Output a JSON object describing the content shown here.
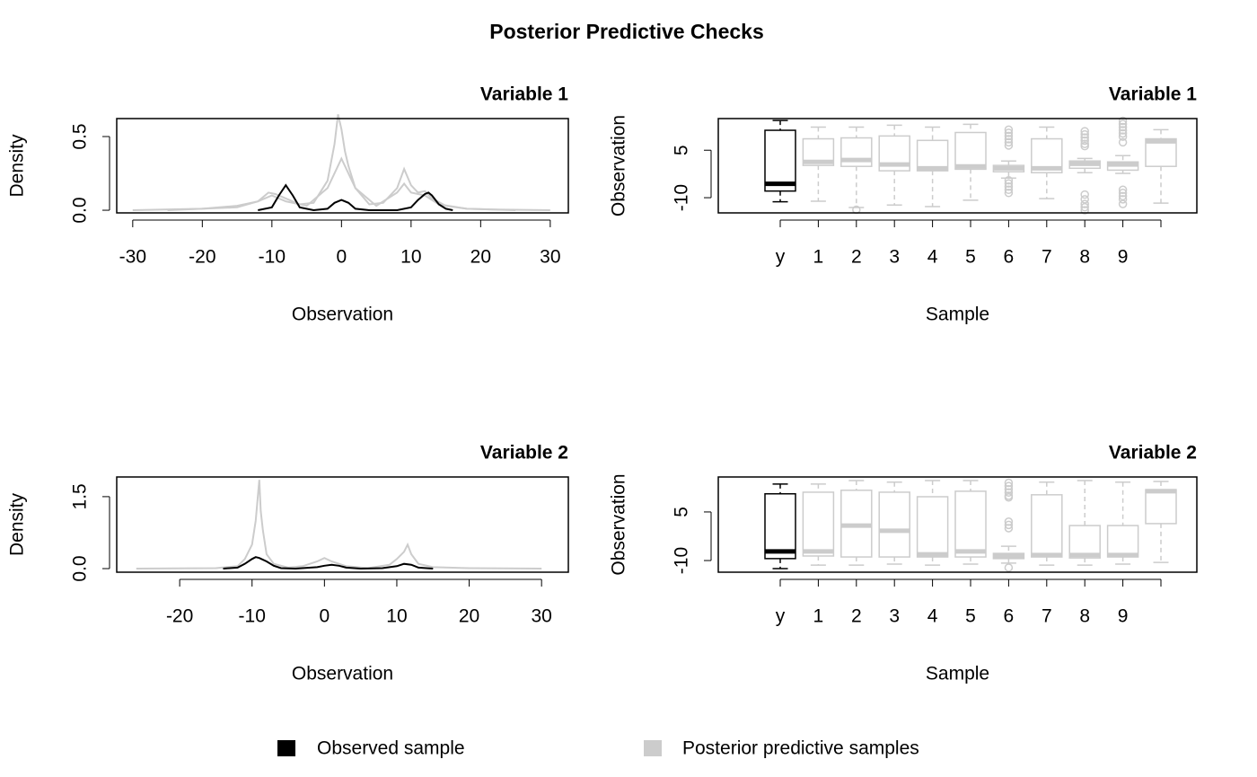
{
  "title": "Posterior Predictive Checks",
  "legend": [
    {
      "name": "Observed sample",
      "color": "#000000"
    },
    {
      "name": "Posterior predictive samples",
      "color": "#cccccc"
    }
  ],
  "chart_data": [
    {
      "type": "line",
      "title": "Variable 1",
      "xlabel": "Observation",
      "ylabel": "Density",
      "xlim": [
        -32.3,
        32.6
      ],
      "ylim": [
        -0.018,
        0.622
      ],
      "xticks": [
        -30,
        -20,
        -10,
        0,
        10,
        20,
        30
      ],
      "yticks": [
        {
          "value": 0,
          "label": "0.0"
        },
        {
          "value": 0.5,
          "label": "0.5"
        }
      ],
      "series": [
        {
          "color": "#cccccc",
          "x": [
            -30,
            -20,
            -15,
            -12,
            -10.5,
            -9.5,
            -8,
            -6,
            -4,
            -2,
            -1,
            -0.5,
            0,
            0.5,
            1,
            2,
            4,
            6,
            8,
            9,
            10,
            11,
            12,
            13,
            15,
            18,
            22,
            30
          ],
          "values": [
            0,
            0.01,
            0.03,
            0.06,
            0.12,
            0.11,
            0.08,
            0.04,
            0.05,
            0.2,
            0.45,
            0.65,
            0.55,
            0.4,
            0.3,
            0.15,
            0.04,
            0.05,
            0.15,
            0.28,
            0.17,
            0.12,
            0.13,
            0.08,
            0.03,
            0.01,
            0.005,
            0
          ]
        },
        {
          "color": "#cccccc",
          "x": [
            -25,
            -15,
            -12,
            -10,
            -8,
            -5,
            -2,
            0,
            2,
            5,
            8,
            9,
            10,
            12,
            14,
            18,
            25
          ],
          "values": [
            0,
            0.02,
            0.06,
            0.1,
            0.06,
            0.03,
            0.15,
            0.35,
            0.15,
            0.03,
            0.12,
            0.18,
            0.12,
            0.1,
            0.04,
            0.01,
            0
          ]
        },
        {
          "color": "#000000",
          "x": [
            -12,
            -10,
            -9,
            -8,
            -7,
            -6,
            -4,
            -2,
            -1,
            0,
            1,
            2,
            4,
            6,
            8,
            10,
            11,
            12,
            12.5,
            13,
            14,
            15,
            16
          ],
          "values": [
            0,
            0.02,
            0.1,
            0.17,
            0.1,
            0.02,
            0,
            0.01,
            0.05,
            0.07,
            0.05,
            0.01,
            0,
            0,
            0,
            0.02,
            0.07,
            0.11,
            0.12,
            0.1,
            0.04,
            0.01,
            0
          ]
        }
      ]
    },
    {
      "type": "box",
      "title": "Variable 1",
      "xlabel": "Sample",
      "ylabel": "Observation",
      "ylim": [
        -14.8,
        15
      ],
      "yticks": [
        -10,
        5
      ],
      "categories": [
        "y",
        "1",
        "2",
        "3",
        "4",
        "5",
        "6",
        "7",
        "8",
        "9",
        null
      ],
      "boxes": [
        {
          "color": "#000000",
          "min": -11.3,
          "q1": -7.9,
          "median": -5.6,
          "q3": 11.3,
          "max": 14.4,
          "outliers": []
        },
        {
          "color": "#cccccc",
          "min": -11.1,
          "q1": 0.2,
          "median": 1.3,
          "q3": 8.6,
          "max": 12.3,
          "outliers": []
        },
        {
          "color": "#cccccc",
          "min": -13.1,
          "q1": -0.1,
          "median": 1.9,
          "q3": 8.9,
          "max": 12.3,
          "outliers": [
            -13.8
          ]
        },
        {
          "color": "#cccccc",
          "min": -12.3,
          "q1": -1.5,
          "median": 0.5,
          "q3": 9.5,
          "max": 12.9,
          "outliers": []
        },
        {
          "color": "#cccccc",
          "min": -12.8,
          "q1": -1.5,
          "median": -0.7,
          "q3": 8.1,
          "max": 12.3,
          "outliers": []
        },
        {
          "color": "#cccccc",
          "min": -10.8,
          "q1": -1,
          "median": -0.1,
          "q3": 10.6,
          "max": 13.2,
          "outliers": []
        },
        {
          "color": "#cccccc",
          "min": -3.8,
          "q1": -1.8,
          "median": -0.7,
          "q3": 0.2,
          "max": 1.6,
          "outliers": [
            11.5,
            10.5,
            9.5,
            8.5,
            7.5,
            6.5,
            -4.5,
            -5.5,
            -6.5,
            -7.5,
            -8.5
          ]
        },
        {
          "color": "#cccccc",
          "min": -10.3,
          "q1": -2.1,
          "median": -0.7,
          "q3": 8.6,
          "max": 12.3,
          "outliers": []
        },
        {
          "color": "#cccccc",
          "min": -2.1,
          "q1": -0.7,
          "median": 0.7,
          "q3": 1.6,
          "max": 2.4,
          "outliers": [
            11,
            10,
            9,
            8,
            7,
            6.3,
            -9,
            -10.5,
            -12,
            -13,
            -14
          ]
        },
        {
          "color": "#cccccc",
          "min": -2.3,
          "q1": -1.3,
          "median": 0.5,
          "q3": 1.3,
          "max": 3.3,
          "outliers": [
            14.3,
            13.3,
            12.3,
            11.3,
            10.3,
            9.3,
            7.5,
            -7.5,
            -8.5,
            -9.5,
            -10.5,
            -12
          ]
        },
        {
          "color": "#cccccc",
          "min": -11.7,
          "q1": -0.1,
          "median": 7.8,
          "q3": 8.6,
          "max": 11.5,
          "outliers": []
        }
      ]
    },
    {
      "type": "line",
      "title": "Variable 2",
      "xlabel": "Observation",
      "ylabel": "Density",
      "xlim": [
        -28.7,
        33.7
      ],
      "ylim": [
        -0.075,
        1.91
      ],
      "xticks": [
        -20,
        -10,
        0,
        10,
        20,
        30
      ],
      "yticks": [
        {
          "value": 0,
          "label": "0.0"
        },
        {
          "value": 1.5,
          "label": "1.5"
        }
      ],
      "series": [
        {
          "color": "#cccccc",
          "x": [
            -26,
            -15,
            -12,
            -11,
            -10,
            -9.5,
            -9,
            -8.8,
            -8.5,
            -8,
            -7,
            -5,
            -3,
            -1,
            0,
            1,
            3,
            6,
            9,
            10,
            11,
            11.5,
            12,
            13,
            15,
            20,
            30
          ],
          "values": [
            0,
            0.01,
            0.05,
            0.2,
            0.5,
            1.0,
            1.85,
            1.2,
            0.8,
            0.3,
            0.1,
            0.02,
            0.05,
            0.15,
            0.22,
            0.15,
            0.05,
            0.01,
            0.08,
            0.2,
            0.35,
            0.5,
            0.3,
            0.1,
            0.03,
            0.01,
            0
          ]
        },
        {
          "color": "#000000",
          "x": [
            -14,
            -12,
            -11,
            -10,
            -9.5,
            -9,
            -8,
            -7,
            -6,
            -4,
            -1,
            0,
            1,
            2,
            3,
            5,
            8,
            10,
            11,
            12,
            13,
            15
          ],
          "values": [
            0,
            0.02,
            0.1,
            0.2,
            0.24,
            0.22,
            0.15,
            0.06,
            0.01,
            0,
            0.03,
            0.06,
            0.08,
            0.06,
            0.02,
            0,
            0.01,
            0.05,
            0.1,
            0.08,
            0.02,
            0
          ]
        }
      ]
    },
    {
      "type": "box",
      "title": "Variable 2",
      "xlabel": "Sample",
      "ylabel": "Observation",
      "ylim": [
        -13.6,
        15.8
      ],
      "yticks": [
        -10,
        5
      ],
      "categories": [
        "y",
        "1",
        "2",
        "3",
        "4",
        "5",
        "6",
        "7",
        "8",
        "9",
        null
      ],
      "boxes": [
        {
          "color": "#000000",
          "min": -12.5,
          "q1": -9.4,
          "median": -7.2,
          "q3": 10.6,
          "max": 13.6,
          "outliers": []
        },
        {
          "color": "#cccccc",
          "min": -11.4,
          "q1": -8.6,
          "median": -7.2,
          "q3": 11.1,
          "max": 13.6,
          "outliers": []
        },
        {
          "color": "#cccccc",
          "min": -11.4,
          "q1": -8.9,
          "median": 0.8,
          "q3": 11.7,
          "max": 14.7,
          "outliers": []
        },
        {
          "color": "#cccccc",
          "min": -11.1,
          "q1": -8.9,
          "median": -0.8,
          "q3": 11.1,
          "max": 14.2,
          "outliers": []
        },
        {
          "color": "#cccccc",
          "min": -11.4,
          "q1": -8.9,
          "median": -8.1,
          "q3": 9.7,
          "max": 14.7,
          "outliers": []
        },
        {
          "color": "#cccccc",
          "min": -11.1,
          "q1": -8.9,
          "median": -7.2,
          "q3": 11.4,
          "max": 14.7,
          "outliers": []
        },
        {
          "color": "#cccccc",
          "min": -10.8,
          "q1": -9.4,
          "median": -8.6,
          "q3": -7.8,
          "max": -5.6,
          "outliers": [
            14,
            13,
            12,
            11,
            10,
            9.5,
            2,
            1,
            0,
            -12.2
          ]
        },
        {
          "color": "#cccccc",
          "min": -11.4,
          "q1": -8.9,
          "median": -8.3,
          "q3": 10.3,
          "max": 14.2,
          "outliers": []
        },
        {
          "color": "#cccccc",
          "min": -11.4,
          "q1": -9.2,
          "median": -8.3,
          "q3": 0.8,
          "max": 14.7,
          "outliers": []
        },
        {
          "color": "#cccccc",
          "min": -11.1,
          "q1": -8.9,
          "median": -8.3,
          "q3": 0.8,
          "max": 14.2,
          "outliers": []
        },
        {
          "color": "#cccccc",
          "min": -10.6,
          "q1": 1.4,
          "median": 11.4,
          "q3": 11.9,
          "max": 14.4,
          "outliers": []
        }
      ]
    }
  ]
}
